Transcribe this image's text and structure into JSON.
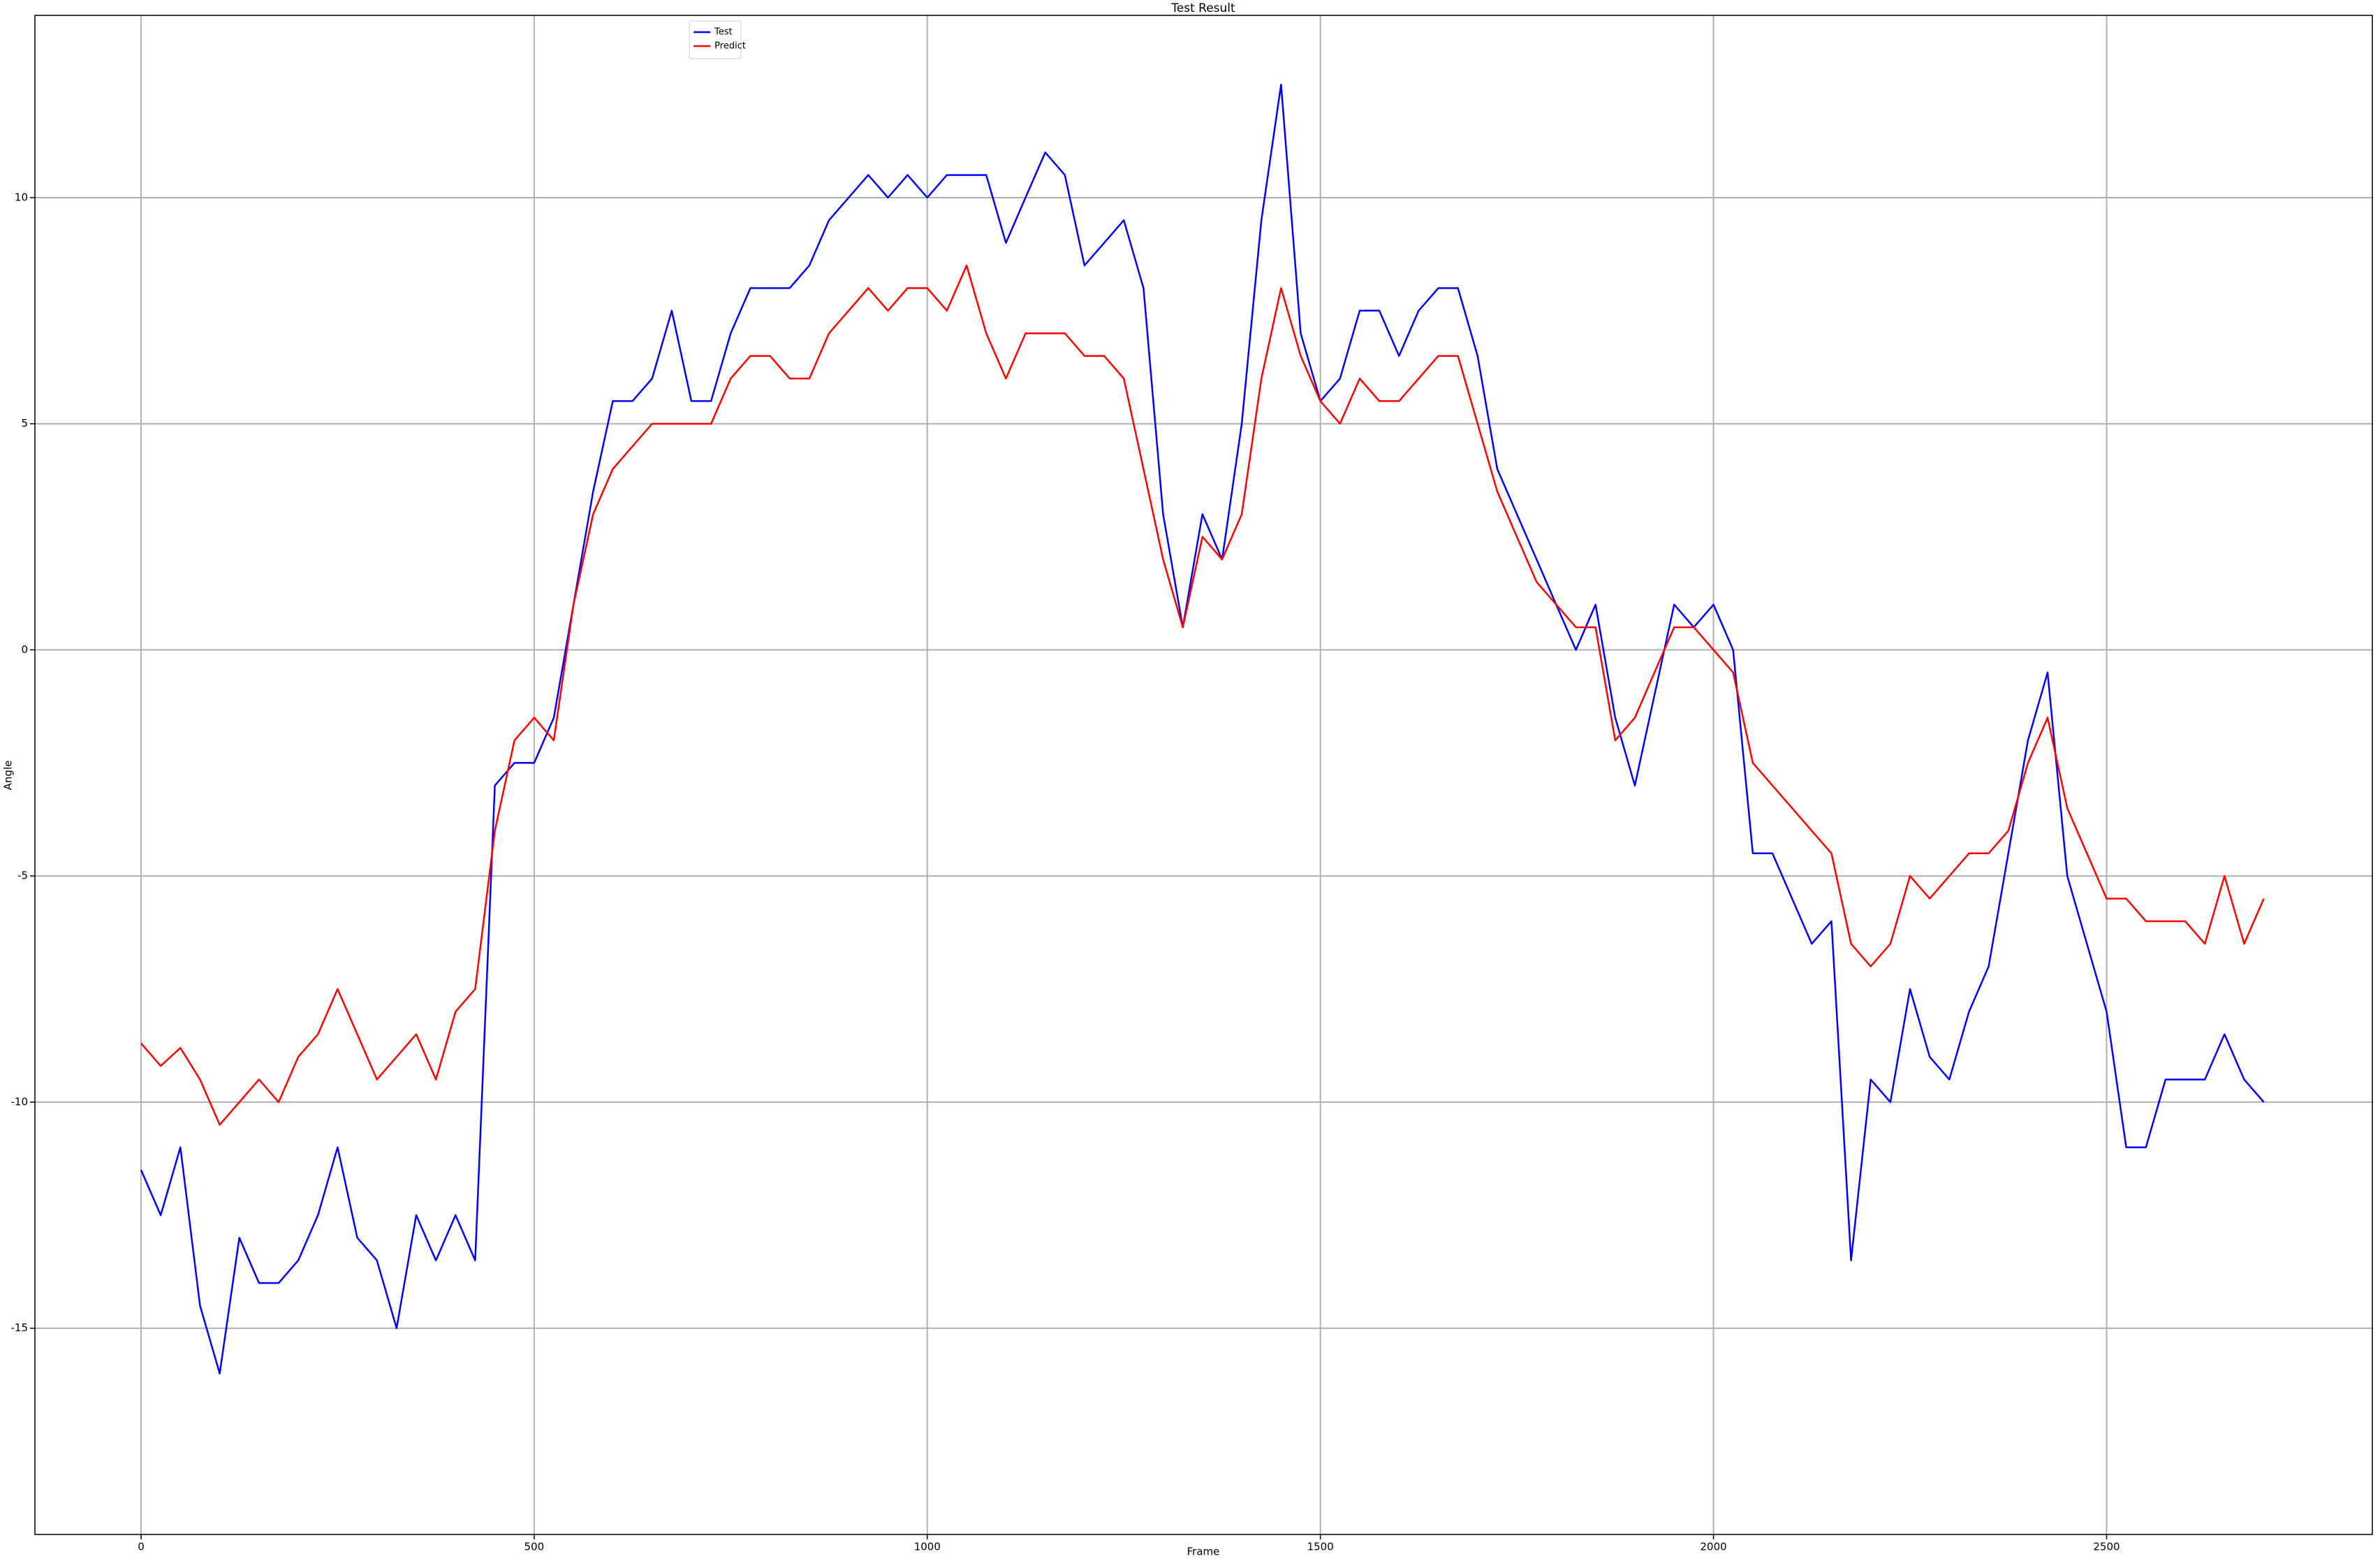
{
  "chart_data": {
    "type": "line",
    "title": "Test Result",
    "xlabel": "Frame",
    "ylabel": "Angle",
    "x": [
      0,
      25,
      50,
      75,
      100,
      125,
      150,
      175,
      200,
      225,
      250,
      275,
      300,
      325,
      350,
      375,
      400,
      425,
      450,
      475,
      500,
      525,
      550,
      575,
      600,
      625,
      650,
      675,
      700,
      725,
      750,
      775,
      800,
      825,
      850,
      875,
      900,
      925,
      950,
      975,
      1000,
      1025,
      1050,
      1075,
      1100,
      1125,
      1150,
      1175,
      1200,
      1225,
      1250,
      1275,
      1300,
      1325,
      1350,
      1375,
      1400,
      1425,
      1450,
      1475,
      1500,
      1525,
      1550,
      1575,
      1600,
      1625,
      1650,
      1675,
      1700,
      1725,
      1750,
      1775,
      1800,
      1825,
      1850,
      1875,
      1900,
      1925,
      1950,
      1975,
      2000,
      2025,
      2050,
      2075,
      2100,
      2125,
      2150,
      2175,
      2200,
      2225,
      2250,
      2275,
      2300,
      2325,
      2350,
      2375,
      2400,
      2425,
      2450,
      2475,
      2500,
      2525,
      2550,
      2575,
      2600,
      2625,
      2650,
      2675,
      2700
    ],
    "series": [
      {
        "name": "Test",
        "color": "#0000ff",
        "values": [
          -11.5,
          -12.5,
          -11,
          -14.5,
          -16,
          -13,
          -14,
          -14,
          -13.5,
          -12.5,
          -11,
          -13,
          -13.5,
          -15,
          -12.5,
          -13.5,
          -12.5,
          -13.5,
          -3,
          -2.5,
          -2.5,
          -1.5,
          1,
          3.5,
          5.5,
          5.5,
          6,
          7.5,
          5.5,
          5.5,
          7,
          8,
          8,
          8,
          8.5,
          9.5,
          10,
          10.5,
          10,
          10.5,
          10,
          10.5,
          10.5,
          10.5,
          9,
          10,
          11,
          10.5,
          8.5,
          9,
          9.5,
          8,
          3,
          0.5,
          3,
          2,
          5,
          9.5,
          12.5,
          7,
          5.5,
          6,
          7.5,
          7.5,
          6.5,
          7.5,
          8,
          8,
          6.5,
          4,
          3,
          2,
          1,
          0,
          1,
          -1.5,
          -3,
          -1,
          1,
          0.5,
          1,
          0,
          -4.5,
          -4.5,
          -5.5,
          -6.5,
          -6,
          -13.5,
          -9.5,
          -10,
          -7.5,
          -9,
          -9.5,
          -8,
          -7,
          -4.5,
          -2,
          -0.5,
          -5,
          -6.5,
          -8,
          -11,
          -11,
          -9.5,
          -9.5,
          -9.5,
          -8.5,
          -9.5,
          -10
        ]
      },
      {
        "name": "Predict",
        "color": "#ff0000",
        "values": [
          -8.7,
          -9.2,
          -8.8,
          -9.5,
          -10.5,
          -10,
          -9.5,
          -10,
          -9,
          -8.5,
          -7.5,
          -8.5,
          -9.5,
          -9,
          -8.5,
          -9.5,
          -8,
          -7.5,
          -4,
          -2,
          -1.5,
          -2,
          1,
          3,
          4,
          4.5,
          5,
          5,
          5,
          5,
          6,
          6.5,
          6.5,
          6,
          6,
          7,
          7.5,
          8,
          7.5,
          8,
          8,
          7.5,
          8.5,
          7,
          6,
          7,
          7,
          7,
          6.5,
          6.5,
          6,
          4,
          2,
          0.5,
          2.5,
          2,
          3,
          6,
          8,
          6.5,
          5.5,
          5,
          6,
          5.5,
          5.5,
          6,
          6.5,
          6.5,
          5,
          3.5,
          2.5,
          1.5,
          1,
          0.5,
          0.5,
          -2,
          -1.5,
          -0.5,
          0.5,
          0.5,
          0,
          -0.5,
          -2.5,
          -3,
          -3.5,
          -4,
          -4.5,
          -6.5,
          -7,
          -6.5,
          -5,
          -5.5,
          -5,
          -4.5,
          -4.5,
          -4,
          -2.5,
          -1.5,
          -3.5,
          -4.5,
          -5.5,
          -5.5,
          -6,
          -6,
          -6,
          -6.5,
          -5,
          -6.5,
          -5.5
        ]
      }
    ],
    "xlim": [
      -135,
      2838
    ],
    "ylim": [
      -19.56,
      14.03
    ],
    "xticks": [
      0,
      500,
      1000,
      1500,
      2000,
      2500
    ],
    "yticks": [
      -15,
      -10,
      -5,
      0,
      5,
      10
    ],
    "grid": true,
    "legend": "upper center"
  }
}
